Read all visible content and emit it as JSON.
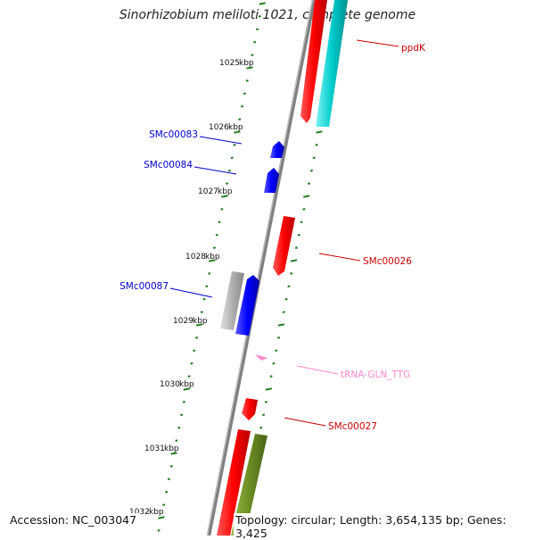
{
  "title": "Sinorhizobium meliloti 1021, complete genome",
  "footer": {
    "accession_label": "Accession:",
    "accession": "NC_003047",
    "topology_label": "Topology:",
    "topology": "circular;",
    "length_label": "Length:",
    "length": "3,654,135 bp;",
    "genes_label": "Genes:",
    "genes": "3,425"
  },
  "scale": {
    "unit": "kbp",
    "ticks": [
      1025,
      1026,
      1027,
      1028,
      1029,
      1030,
      1031,
      1032
    ]
  },
  "colors": {
    "backbone": "#808080",
    "tick": "#1a7a1a",
    "forward_gene": "#ff0000",
    "reverse_gene": "#0000ff",
    "trna": "#ff88cc",
    "other_gray": "#b0b0b0",
    "cyan": "#00cccc",
    "olive": "#6b8e23"
  },
  "labels": [
    {
      "text": "ppdK",
      "color": "#cc0000"
    },
    {
      "text": "SMc00083",
      "color": "#0000cc"
    },
    {
      "text": "SMc00084",
      "color": "#0000cc"
    },
    {
      "text": "SMc00026",
      "color": "#cc0000"
    },
    {
      "text": "SMc00087",
      "color": "#0000cc"
    },
    {
      "text": "tRNA-GLN_TTG",
      "color": "#ff88cc"
    },
    {
      "text": "SMc00027",
      "color": "#cc0000"
    }
  ]
}
